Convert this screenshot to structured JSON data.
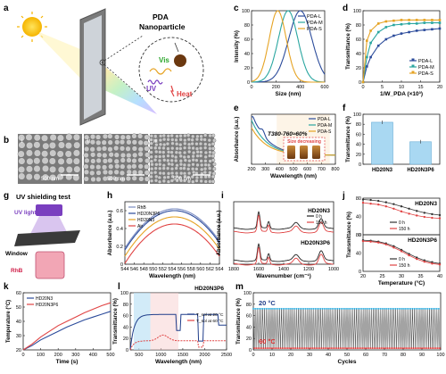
{
  "panels": {
    "a": {
      "letter": "a",
      "title_line1": "PDA",
      "title_line2": "Nanoparticle",
      "vis": "Vis",
      "uv": "UV",
      "heat": "Heat"
    },
    "b": {
      "letter": "b",
      "labels": [
        "i",
        "ii",
        "iii"
      ],
      "scalebar": "500 nm"
    },
    "e": {
      "letter": "e",
      "annotation": "T380-760≈60%",
      "callout": "Size decreasing"
    },
    "g": {
      "letter": "g",
      "title": "UV shielding test",
      "uv_light": "UV light",
      "window": "Window",
      "rhb": "RhB"
    },
    "i": {
      "labels": [
        "HD20N3",
        "HD20N3P6"
      ]
    },
    "j": {
      "labels": [
        "HD20N3",
        "HD20N3P6"
      ]
    },
    "l": {
      "title": "HD20N3P6"
    },
    "m": {
      "label_hot": "20 °C",
      "label_cold": "60 °C"
    }
  },
  "chart_data": [
    {
      "id": "c",
      "type": "line",
      "xlabel": "Size (nm)",
      "ylabel": "Intensity (%)",
      "xlim": [
        0,
        600
      ],
      "ylim": [
        0,
        100
      ],
      "xticks": [
        0,
        200,
        400,
        600
      ],
      "yticks": [
        0,
        20,
        40,
        60,
        80,
        100
      ],
      "series": [
        {
          "name": "PDA-L",
          "color": "#2b4b9b",
          "center": 400,
          "width": 95
        },
        {
          "name": "PDA-M",
          "color": "#2aa6a0",
          "center": 300,
          "width": 80
        },
        {
          "name": "PDA-S",
          "color": "#e6a323",
          "center": 215,
          "width": 70
        }
      ],
      "legend": "top-right"
    },
    {
      "id": "d",
      "type": "line",
      "xlabel": "1/W_PDA (×10³)",
      "ylabel": "Transmittance (%)",
      "xlim": [
        0,
        20
      ],
      "ylim": [
        0,
        100
      ],
      "xticks": [
        0,
        5,
        10,
        15,
        20
      ],
      "yticks": [
        0,
        20,
        40,
        60,
        80,
        100
      ],
      "series": [
        {
          "name": "PDA-L",
          "color": "#2b4b9b",
          "x": [
            0,
            1,
            2,
            4,
            6,
            8,
            10,
            12,
            14,
            16,
            18,
            20
          ],
          "y": [
            0,
            22,
            35,
            51,
            60,
            65,
            68,
            70,
            72,
            73,
            74,
            75
          ]
        },
        {
          "name": "PDA-M",
          "color": "#2aa6a0",
          "x": [
            0,
            1,
            2,
            4,
            6,
            8,
            10,
            12,
            14,
            16,
            18,
            20
          ],
          "y": [
            0,
            35,
            55,
            70,
            77,
            80,
            81,
            82,
            82,
            83,
            83,
            83
          ]
        },
        {
          "name": "PDA-S",
          "color": "#e6a323",
          "x": [
            0,
            1,
            2,
            4,
            6,
            8,
            10,
            12,
            14,
            16,
            18,
            20
          ],
          "y": [
            0,
            58,
            72,
            82,
            85,
            86,
            87,
            87,
            87,
            87,
            87,
            87
          ]
        }
      ],
      "legend": "bottom-right"
    },
    {
      "id": "e",
      "type": "line",
      "xlabel": "Wavelength (nm)",
      "ylabel": "Absorbance (a.u.)",
      "xlim": [
        200,
        800
      ],
      "xticks": [
        200,
        300,
        400,
        500,
        600,
        700,
        800
      ],
      "series": [
        {
          "name": "PDA-L",
          "color": "#2b4b9b"
        },
        {
          "name": "PDA-M",
          "color": "#2aa6a0"
        },
        {
          "name": "PDA-S",
          "color": "#e6a323"
        }
      ],
      "legend": "top-right"
    },
    {
      "id": "f",
      "type": "bar",
      "ylabel": "Transmittance (%)",
      "ylim": [
        0,
        100
      ],
      "yticks": [
        0,
        20,
        40,
        60,
        80,
        100
      ],
      "categories": [
        "HD20N3",
        "HD20N3P6"
      ],
      "values": [
        84,
        45
      ]
    },
    {
      "id": "h",
      "type": "line",
      "xlabel": "Wavelength (nm)",
      "ylabel": "Absorbance (a.u.)",
      "xlim": [
        544,
        564
      ],
      "ylim": [
        0,
        0.7
      ],
      "xticks": [
        544,
        546,
        548,
        550,
        552,
        554,
        556,
        558,
        560,
        562,
        564
      ],
      "yticks": [
        0.0,
        0.2,
        0.4,
        0.6
      ],
      "series": [
        {
          "name": "RhB",
          "color": "#7a8cc2",
          "peak": 0.62
        },
        {
          "name": "HD20N3P6",
          "color": "#2b4b9b",
          "peak": 0.6
        },
        {
          "name": "HD20N3",
          "color": "#e6a323",
          "peak": 0.53
        },
        {
          "name": "Air",
          "color": "#e04343",
          "peak": 0.45
        }
      ],
      "legend": "top-left"
    },
    {
      "id": "i",
      "type": "line",
      "xlabel": "Wavenumber (cm⁻¹)",
      "ylabel": "Absorbance (a.u.)",
      "xlim": [
        1800,
        1000
      ],
      "xticks": [
        1800,
        1600,
        1400,
        1200,
        1000
      ],
      "series": [
        {
          "name": "0 h",
          "color": "#222222"
        },
        {
          "name": "150 h",
          "color": "#e04343"
        }
      ],
      "legend": "top-right"
    },
    {
      "id": "j",
      "type": "line",
      "xlabel": "Temperature (°C)",
      "ylabel": "Transmittance (%)",
      "xlim": [
        20,
        40
      ],
      "ylim": [
        0,
        80
      ],
      "xticks": [
        20,
        25,
        30,
        35,
        40
      ],
      "yticks": [
        0,
        20,
        40,
        60,
        80
      ],
      "groups": [
        {
          "name": "HD20N3",
          "series": [
            {
              "name": "0 h",
              "color": "#333333",
              "x": [
                20,
                22,
                24,
                26,
                28,
                30,
                32,
                34,
                36,
                38,
                40
              ],
              "y": [
                77,
                76,
                74,
                71,
                67,
                62,
                57,
                52,
                48,
                45,
                43
              ]
            },
            {
              "name": "150 h",
              "color": "#e04343",
              "x": [
                20,
                22,
                24,
                26,
                28,
                30,
                32,
                34,
                36,
                38,
                40
              ],
              "y": [
                70,
                68,
                66,
                62,
                57,
                51,
                46,
                42,
                39,
                37,
                36
              ]
            }
          ]
        },
        {
          "name": "HD20N3P6",
          "series": [
            {
              "name": "0 h",
              "color": "#333333",
              "x": [
                20,
                22,
                24,
                26,
                28,
                30,
                32,
                34,
                36,
                38,
                40
              ],
              "y": [
                68,
                67,
                65,
                61,
                55,
                47,
                38,
                30,
                24,
                20,
                17
              ]
            },
            {
              "name": "150 h",
              "color": "#e04343",
              "x": [
                20,
                22,
                24,
                26,
                28,
                30,
                32,
                34,
                36,
                38,
                40
              ],
              "y": [
                66,
                65,
                63,
                59,
                52,
                44,
                35,
                27,
                21,
                17,
                15
              ]
            }
          ]
        }
      ]
    },
    {
      "id": "k",
      "type": "line",
      "xlabel": "Time (s)",
      "ylabel": "Temperature (°C)",
      "xlim": [
        0,
        500
      ],
      "ylim": [
        20,
        60
      ],
      "xticks": [
        0,
        100,
        200,
        300,
        400,
        500
      ],
      "yticks": [
        20,
        30,
        40,
        50,
        60
      ],
      "series": [
        {
          "name": "HD20N3",
          "color": "#2b4b9b",
          "x": [
            0,
            50,
            100,
            150,
            200,
            250,
            300,
            350,
            400,
            450,
            500
          ],
          "y": [
            20,
            23,
            27,
            30,
            33,
            36,
            38.5,
            41,
            43,
            45,
            47
          ]
        },
        {
          "name": "HD20N3P6",
          "color": "#e04343",
          "x": [
            0,
            50,
            100,
            150,
            200,
            250,
            300,
            350,
            400,
            450,
            500
          ],
          "y": [
            20,
            24,
            29,
            33,
            37,
            40,
            43,
            46,
            48.5,
            51,
            53
          ]
        }
      ],
      "legend": "top-left"
    },
    {
      "id": "l",
      "type": "line",
      "xlabel": "Wavelength (nm)",
      "ylabel": "Transmittance (%)",
      "xlim": [
        300,
        2500
      ],
      "ylim": [
        0,
        100
      ],
      "xticks": [
        500,
        1000,
        1500,
        2000,
        2500
      ],
      "yticks": [
        0,
        20,
        40,
        60,
        80,
        100
      ],
      "series": [
        {
          "name": "T_sol at 20 °C",
          "color": "#1f3d8a"
        },
        {
          "name": "T_sol at 60 °C",
          "color": "#e04343"
        }
      ],
      "legend": "right"
    },
    {
      "id": "m",
      "type": "line",
      "xlabel": "Cycles",
      "ylabel": "Transmittance (%)",
      "xlim": [
        0,
        100
      ],
      "ylim": [
        0,
        100
      ],
      "xticks": [
        0,
        10,
        20,
        30,
        40,
        50,
        60,
        70,
        80,
        90,
        100
      ],
      "yticks": [
        0,
        20,
        40,
        60,
        80,
        100
      ],
      "series": [
        {
          "name": "20 °C",
          "color": "#1da9e0",
          "level": 72
        },
        {
          "name": "60 °C",
          "color": "#e03030",
          "level": 3
        }
      ]
    }
  ]
}
